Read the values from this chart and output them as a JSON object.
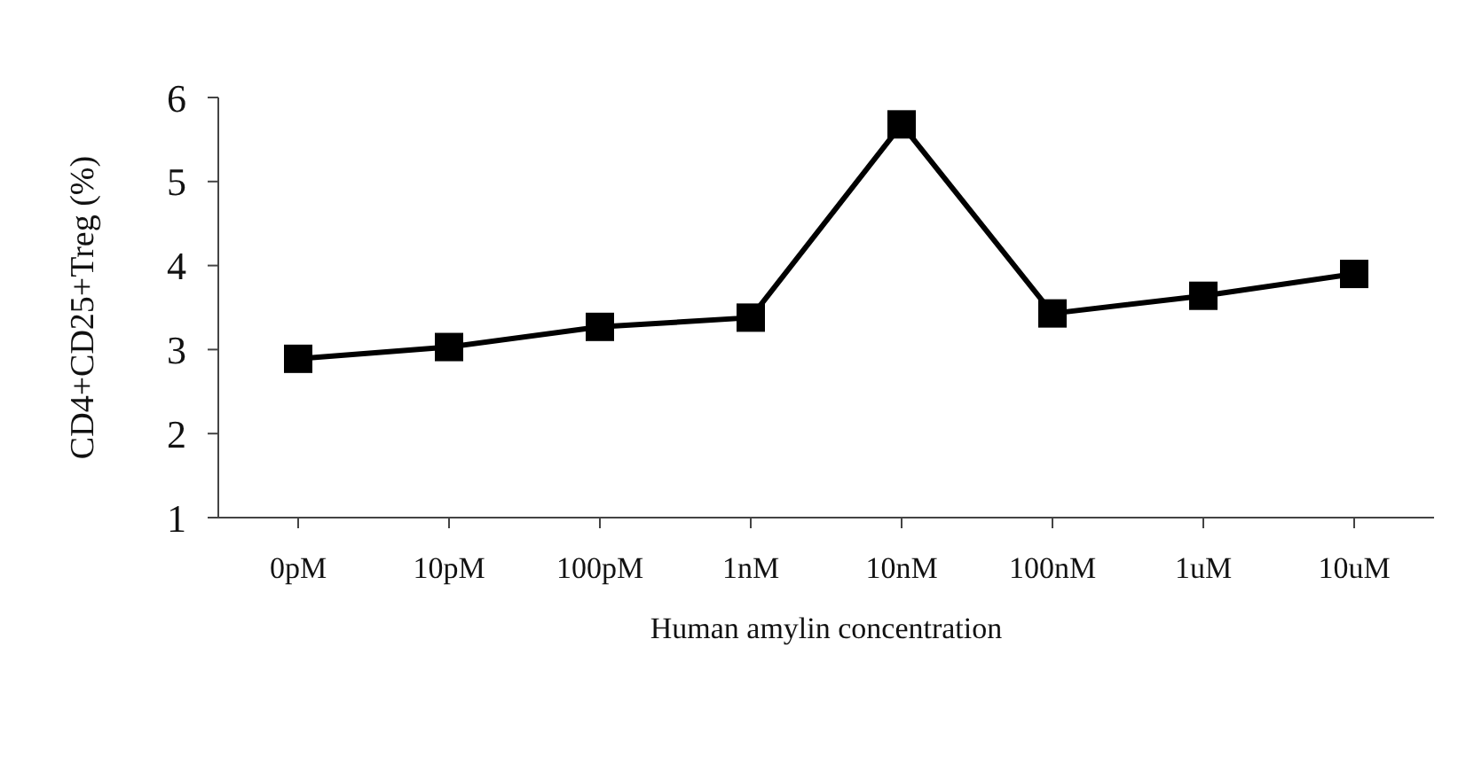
{
  "chart_data": {
    "type": "line",
    "xlabel": "Human amylin concentration",
    "ylabel": "CD4+CD25+Treg (%)",
    "categories": [
      "0pM",
      "10pM",
      "100pM",
      "1nM",
      "10nM",
      "100nM",
      "1uM",
      "10uM"
    ],
    "series": [
      {
        "color": "#000000",
        "values": [
          2.89,
          3.03,
          3.27,
          3.38,
          5.68,
          3.43,
          3.64,
          3.9
        ]
      }
    ],
    "ylim": [
      1,
      6
    ],
    "yticks": [
      1,
      2,
      3,
      4,
      5,
      6
    ],
    "marker": "square",
    "line_style": "solid",
    "grid": false,
    "legend": false
  }
}
